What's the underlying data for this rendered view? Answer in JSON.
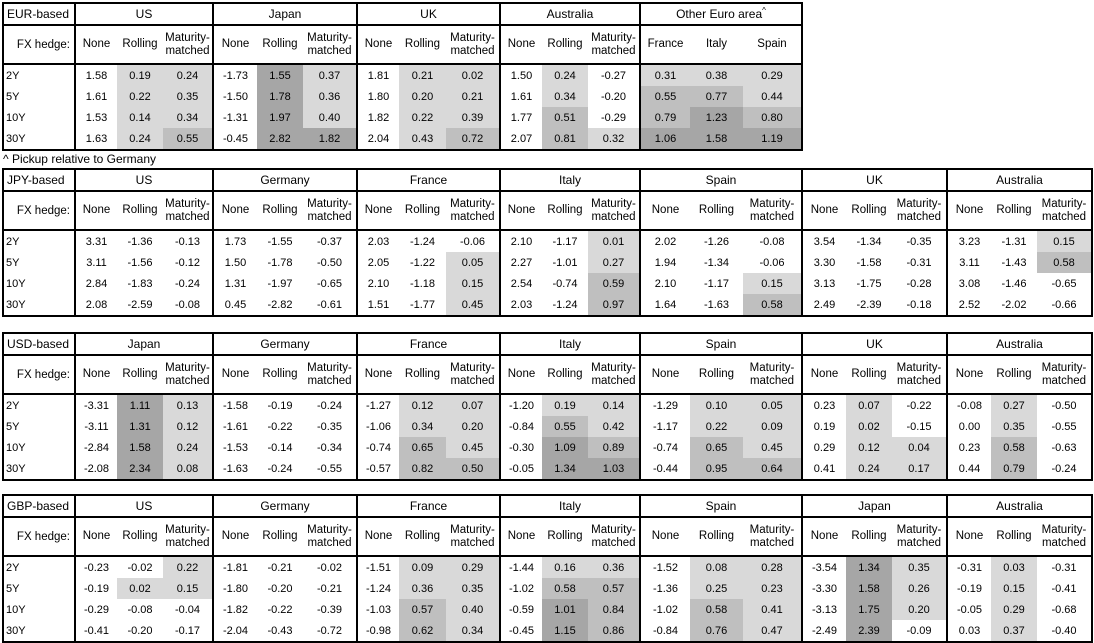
{
  "footnote": "^ Pickup relative to Germany",
  "fx_hedge_label": "FX hedge:",
  "row_labels": [
    "2Y",
    "5Y",
    "10Y",
    "30Y"
  ],
  "hedge_cols": [
    "None",
    "Rolling",
    "Maturity-matched"
  ],
  "shade_colors": {
    "light": "#d9d9d9",
    "medium": "#bfbfbf",
    "dark": "#a6a6a6",
    "none": "#ffffff"
  },
  "shade_thresholds": {
    "light_min": 0,
    "medium_min": 0.5,
    "dark_min": 1.0
  },
  "tables": [
    {
      "base": "EUR-based",
      "groups": [
        {
          "name": "US",
          "values": [
            [
              "1.58",
              "0.19",
              "0.24"
            ],
            [
              "1.61",
              "0.22",
              "0.35"
            ],
            [
              "1.53",
              "0.14",
              "0.34"
            ],
            [
              "1.63",
              "0.24",
              "0.55"
            ]
          ]
        },
        {
          "name": "Japan",
          "values": [
            [
              "-1.73",
              "1.55",
              "0.37"
            ],
            [
              "-1.50",
              "1.78",
              "0.36"
            ],
            [
              "-1.31",
              "1.97",
              "0.40"
            ],
            [
              "-0.45",
              "2.82",
              "1.82"
            ]
          ]
        },
        {
          "name": "UK",
          "values": [
            [
              "1.81",
              "0.21",
              "0.02"
            ],
            [
              "1.80",
              "0.20",
              "0.21"
            ],
            [
              "1.82",
              "0.22",
              "0.39"
            ],
            [
              "2.04",
              "0.43",
              "0.72"
            ]
          ]
        },
        {
          "name": "Australia",
          "values": [
            [
              "1.50",
              "0.24",
              "-0.27"
            ],
            [
              "1.61",
              "0.34",
              "-0.20"
            ],
            [
              "1.77",
              "0.51",
              "-0.29"
            ],
            [
              "2.07",
              "0.81",
              "0.32"
            ]
          ]
        },
        {
          "name": "Other Euro area",
          "sup": "^",
          "cols": [
            "France",
            "Italy",
            "Spain"
          ],
          "values": [
            [
              "0.31",
              "0.38",
              "0.29"
            ],
            [
              "0.55",
              "0.77",
              "0.44"
            ],
            [
              "0.79",
              "1.23",
              "0.80"
            ],
            [
              "1.06",
              "1.58",
              "1.19"
            ]
          ]
        }
      ]
    },
    {
      "base": "JPY-based",
      "groups": [
        {
          "name": "US",
          "values": [
            [
              "3.31",
              "-1.36",
              "-0.13"
            ],
            [
              "3.11",
              "-1.56",
              "-0.12"
            ],
            [
              "2.84",
              "-1.83",
              "-0.24"
            ],
            [
              "2.08",
              "-2.59",
              "-0.08"
            ]
          ]
        },
        {
          "name": "Germany",
          "values": [
            [
              "1.73",
              "-1.55",
              "-0.37"
            ],
            [
              "1.50",
              "-1.78",
              "-0.50"
            ],
            [
              "1.31",
              "-1.97",
              "-0.65"
            ],
            [
              "0.45",
              "-2.82",
              "-0.61"
            ]
          ]
        },
        {
          "name": "France",
          "values": [
            [
              "2.03",
              "-1.24",
              "-0.06"
            ],
            [
              "2.05",
              "-1.22",
              "0.05"
            ],
            [
              "2.10",
              "-1.18",
              "0.15"
            ],
            [
              "1.51",
              "-1.77",
              "0.45"
            ]
          ]
        },
        {
          "name": "Italy",
          "values": [
            [
              "2.10",
              "-1.17",
              "0.01"
            ],
            [
              "2.27",
              "-1.01",
              "0.27"
            ],
            [
              "2.54",
              "-0.74",
              "0.59"
            ],
            [
              "2.03",
              "-1.24",
              "0.97"
            ]
          ]
        },
        {
          "name": "Spain",
          "values": [
            [
              "2.02",
              "-1.26",
              "-0.08"
            ],
            [
              "1.94",
              "-1.34",
              "-0.06"
            ],
            [
              "2.10",
              "-1.17",
              "0.15"
            ],
            [
              "1.64",
              "-1.63",
              "0.58"
            ]
          ]
        },
        {
          "name": "UK",
          "values": [
            [
              "3.54",
              "-1.34",
              "-0.35"
            ],
            [
              "3.30",
              "-1.58",
              "-0.31"
            ],
            [
              "3.13",
              "-1.75",
              "-0.28"
            ],
            [
              "2.49",
              "-2.39",
              "-0.18"
            ]
          ]
        },
        {
          "name": "Australia",
          "values": [
            [
              "3.23",
              "-1.31",
              "0.15"
            ],
            [
              "3.11",
              "-1.43",
              "0.58"
            ],
            [
              "3.08",
              "-1.46",
              "-0.65"
            ],
            [
              "2.52",
              "-2.02",
              "-0.66"
            ]
          ]
        }
      ]
    },
    {
      "base": "USD-based",
      "groups": [
        {
          "name": "Japan",
          "values": [
            [
              "-3.31",
              "1.11",
              "0.13"
            ],
            [
              "-3.11",
              "1.31",
              "0.12"
            ],
            [
              "-2.84",
              "1.58",
              "0.24"
            ],
            [
              "-2.08",
              "2.34",
              "0.08"
            ]
          ]
        },
        {
          "name": "Germany",
          "values": [
            [
              "-1.58",
              "-0.19",
              "-0.24"
            ],
            [
              "-1.61",
              "-0.22",
              "-0.35"
            ],
            [
              "-1.53",
              "-0.14",
              "-0.34"
            ],
            [
              "-1.63",
              "-0.24",
              "-0.55"
            ]
          ]
        },
        {
          "name": "France",
          "values": [
            [
              "-1.27",
              "0.12",
              "0.07"
            ],
            [
              "-1.06",
              "0.34",
              "0.20"
            ],
            [
              "-0.74",
              "0.65",
              "0.45"
            ],
            [
              "-0.57",
              "0.82",
              "0.50"
            ]
          ]
        },
        {
          "name": "Italy",
          "values": [
            [
              "-1.20",
              "0.19",
              "0.14"
            ],
            [
              "-0.84",
              "0.55",
              "0.42"
            ],
            [
              "-0.30",
              "1.09",
              "0.89"
            ],
            [
              "-0.05",
              "1.34",
              "1.03"
            ]
          ]
        },
        {
          "name": "Spain",
          "values": [
            [
              "-1.29",
              "0.10",
              "0.05"
            ],
            [
              "-1.17",
              "0.22",
              "0.09"
            ],
            [
              "-0.74",
              "0.65",
              "0.45"
            ],
            [
              "-0.44",
              "0.95",
              "0.64"
            ]
          ]
        },
        {
          "name": "UK",
          "values": [
            [
              "0.23",
              "0.07",
              "-0.22"
            ],
            [
              "0.19",
              "0.02",
              "-0.15"
            ],
            [
              "0.29",
              "0.12",
              "0.04"
            ],
            [
              "0.41",
              "0.24",
              "0.17"
            ]
          ]
        },
        {
          "name": "Australia",
          "values": [
            [
              "-0.08",
              "0.27",
              "-0.50"
            ],
            [
              "0.00",
              "0.35",
              "-0.55"
            ],
            [
              "0.23",
              "0.58",
              "-0.63"
            ],
            [
              "0.44",
              "0.79",
              "-0.24"
            ]
          ]
        }
      ]
    },
    {
      "base": "GBP-based",
      "groups": [
        {
          "name": "US",
          "values": [
            [
              "-0.23",
              "-0.02",
              "0.22"
            ],
            [
              "-0.19",
              "0.02",
              "0.15"
            ],
            [
              "-0.29",
              "-0.08",
              "-0.04"
            ],
            [
              "-0.41",
              "-0.20",
              "-0.17"
            ]
          ]
        },
        {
          "name": "Germany",
          "values": [
            [
              "-1.81",
              "-0.21",
              "-0.02"
            ],
            [
              "-1.80",
              "-0.20",
              "-0.21"
            ],
            [
              "-1.82",
              "-0.22",
              "-0.39"
            ],
            [
              "-2.04",
              "-0.43",
              "-0.72"
            ]
          ]
        },
        {
          "name": "France",
          "values": [
            [
              "-1.51",
              "0.09",
              "0.29"
            ],
            [
              "-1.24",
              "0.36",
              "0.35"
            ],
            [
              "-1.03",
              "0.57",
              "0.40"
            ],
            [
              "-0.98",
              "0.62",
              "0.34"
            ]
          ]
        },
        {
          "name": "Italy",
          "values": [
            [
              "-1.44",
              "0.16",
              "0.36"
            ],
            [
              "-1.02",
              "0.58",
              "0.57"
            ],
            [
              "-0.59",
              "1.01",
              "0.84"
            ],
            [
              "-0.45",
              "1.15",
              "0.86"
            ]
          ]
        },
        {
          "name": "Spain",
          "values": [
            [
              "-1.52",
              "0.08",
              "0.28"
            ],
            [
              "-1.36",
              "0.25",
              "0.23"
            ],
            [
              "-1.02",
              "0.58",
              "0.41"
            ],
            [
              "-0.84",
              "0.76",
              "0.47"
            ]
          ]
        },
        {
          "name": "Japan",
          "values": [
            [
              "-3.54",
              "1.34",
              "0.35"
            ],
            [
              "-3.30",
              "1.58",
              "0.26"
            ],
            [
              "-3.13",
              "1.75",
              "0.20"
            ],
            [
              "-2.49",
              "2.39",
              "-0.09"
            ]
          ]
        },
        {
          "name": "Australia",
          "values": [
            [
              "-0.31",
              "0.03",
              "-0.31"
            ],
            [
              "-0.19",
              "0.15",
              "-0.41"
            ],
            [
              "-0.05",
              "0.29",
              "-0.68"
            ],
            [
              "0.03",
              "0.37",
              "-0.40"
            ]
          ]
        }
      ]
    }
  ]
}
